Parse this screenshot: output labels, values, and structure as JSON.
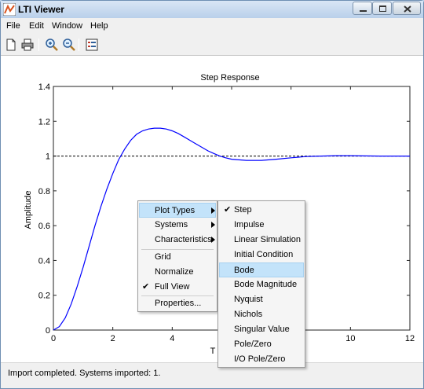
{
  "window": {
    "title": "LTI Viewer"
  },
  "menubar": {
    "items": [
      "File",
      "Edit",
      "Window",
      "Help"
    ]
  },
  "toolbar": {
    "icons": [
      "new-file-icon",
      "print-icon",
      "zoom-in-icon",
      "zoom-out-icon",
      "plot-config-icon"
    ]
  },
  "plot": {
    "title": "Step Response",
    "ylabel": "Amplitude",
    "xlabel_visible": "T",
    "xticks": [
      "0",
      "2",
      "4",
      "6",
      "8",
      "10",
      "12"
    ],
    "yticks": [
      "0",
      "0.2",
      "0.4",
      "0.6",
      "0.8",
      "1",
      "1.2",
      "1.4"
    ]
  },
  "chart_data": {
    "type": "line",
    "title": "Step Response",
    "xlabel": "T",
    "ylabel": "Amplitude",
    "xlim": [
      0,
      12
    ],
    "ylim": [
      0,
      1.4
    ],
    "grid": false,
    "series": [
      {
        "x": [
          0,
          0.2,
          0.4,
          0.6,
          0.8,
          1.0,
          1.2,
          1.4,
          1.6,
          1.8,
          2.0,
          2.2,
          2.4,
          2.6,
          2.8,
          3.0,
          3.2,
          3.4,
          3.6,
          3.8,
          4.0,
          4.2,
          4.4,
          4.6,
          4.8,
          5.0,
          5.2,
          5.4,
          5.6,
          5.8,
          6.0,
          6.5,
          7.0,
          7.5,
          8.0,
          8.5,
          9.0,
          9.5,
          10.0,
          10.5,
          11.0,
          11.5,
          12.0
        ],
        "y": [
          0,
          0.02,
          0.07,
          0.15,
          0.25,
          0.36,
          0.48,
          0.6,
          0.71,
          0.81,
          0.9,
          0.98,
          1.04,
          1.09,
          1.125,
          1.145,
          1.155,
          1.16,
          1.16,
          1.155,
          1.145,
          1.13,
          1.11,
          1.09,
          1.07,
          1.05,
          1.03,
          1.015,
          1.0,
          0.99,
          0.982,
          0.975,
          0.975,
          0.982,
          0.99,
          0.997,
          1.0,
          1.002,
          1.002,
          1.001,
          1.0,
          1.0,
          1.0
        ]
      }
    ],
    "reference_line": {
      "y": 1,
      "style": "dashed"
    }
  },
  "context_menu": {
    "items": [
      {
        "label": "Plot Types",
        "submenu": true,
        "highlighted": true
      },
      {
        "label": "Systems",
        "submenu": true
      },
      {
        "label": "Characteristics",
        "submenu": true
      },
      {
        "label": "Grid"
      },
      {
        "label": "Normalize"
      },
      {
        "label": "Full View",
        "checked": true
      },
      {
        "label": "Properties..."
      }
    ]
  },
  "submenu": {
    "items": [
      {
        "label": "Step",
        "checked": true
      },
      {
        "label": "Impulse"
      },
      {
        "label": "Linear Simulation"
      },
      {
        "label": "Initial Condition"
      },
      {
        "label": "Bode",
        "highlighted": true
      },
      {
        "label": "Bode Magnitude"
      },
      {
        "label": "Nyquist"
      },
      {
        "label": "Nichols"
      },
      {
        "label": "Singular Value"
      },
      {
        "label": "Pole/Zero"
      },
      {
        "label": "I/O Pole/Zero"
      }
    ]
  },
  "status": {
    "text": "Import completed. Systems imported: 1."
  },
  "colors": {
    "curve": "#0000ff",
    "menu_highlight": "#c3e3fa",
    "titlebar": "#b9d0ea"
  }
}
